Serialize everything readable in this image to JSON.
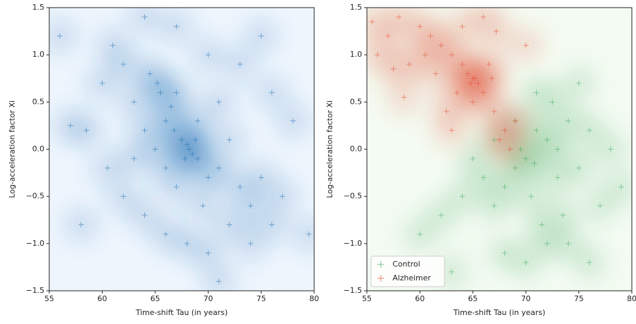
{
  "chart_data": [
    {
      "type": "scatter",
      "background": "#eef5fd",
      "marker": "+",
      "xlabel": "Time-shift Tau (in years)",
      "ylabel": "Log-acceleration factor Xi",
      "xlim": [
        55,
        80
      ],
      "ylim": [
        -1.5,
        1.5
      ],
      "xticks": [
        55,
        60,
        65,
        70,
        75,
        80
      ],
      "yticks": [
        {
          "value": -1.5,
          "label": "−1.5"
        },
        {
          "value": -1,
          "label": "−1.0"
        },
        {
          "value": -0.5,
          "label": "−0.5"
        },
        {
          "value": 0,
          "label": "0.0"
        },
        {
          "value": 0.5,
          "label": "0.5"
        },
        {
          "value": 1,
          "label": "1.0"
        },
        {
          "value": 1.5,
          "label": "1.5"
        }
      ],
      "series": [
        {
          "color": "#2171b5",
          "x": [
            68,
            67.5,
            68.5,
            66,
            65.5,
            64.5,
            66.5,
            69,
            70,
            71,
            72,
            73,
            74,
            75,
            76,
            69.5,
            67,
            66,
            64,
            63,
            62,
            61,
            60,
            58.5,
            57,
            60.5,
            62,
            64,
            66,
            68,
            70,
            72,
            74,
            77,
            78,
            76,
            73,
            70,
            67,
            64,
            71,
            69,
            67,
            65,
            63,
            79.5,
            58,
            56,
            75,
            71,
            68.2,
            67.8,
            68.8,
            66.8,
            65.2
          ],
          "values": [
            0.05,
            0.1,
            -0.05,
            0.3,
            0.6,
            0.8,
            0.45,
            -0.1,
            -0.3,
            -0.2,
            0.1,
            -0.4,
            -0.6,
            -0.3,
            -0.8,
            -0.6,
            -0.4,
            -0.2,
            0.2,
            0.5,
            0.9,
            1.1,
            0.7,
            0.2,
            0.25,
            -0.2,
            -0.5,
            -0.7,
            -0.9,
            -1.0,
            -1.1,
            -0.8,
            -1.0,
            -0.5,
            0.3,
            0.6,
            0.9,
            1.0,
            1.3,
            1.4,
            0.5,
            0.3,
            0.6,
            0.0,
            -0.1,
            -0.9,
            -0.8,
            1.2,
            1.2,
            -1.4,
            0.0,
            -0.1,
            0.1,
            0.2,
            0.7
          ]
        }
      ]
    },
    {
      "type": "scatter",
      "background": "#f4fbf2",
      "marker": "+",
      "legend": "lower left",
      "xlabel": "Time-shift Tau (in years)",
      "ylabel": "Log-acceleration factor Xi",
      "xlim": [
        55,
        80
      ],
      "ylim": [
        -1.5,
        1.5
      ],
      "xticks": [
        55,
        60,
        65,
        70,
        75,
        80
      ],
      "yticks": [
        {
          "value": -1.5,
          "label": "−1.5"
        },
        {
          "value": -1,
          "label": "−1.0"
        },
        {
          "value": -0.5,
          "label": "−0.5"
        },
        {
          "value": 0,
          "label": "0.0"
        },
        {
          "value": 0.5,
          "label": "0.5"
        },
        {
          "value": 1,
          "label": "1.0"
        },
        {
          "value": 1.5,
          "label": "1.5"
        }
      ],
      "series": [
        {
          "name": "Control",
          "color": "#41ab5d",
          "x": [
            71,
            72,
            70,
            69,
            73,
            74,
            72.5,
            70.5,
            68,
            67,
            75,
            76,
            71.5,
            73.5,
            69.5,
            66,
            64,
            62,
            60,
            72,
            70,
            68,
            74,
            77,
            78,
            75,
            71,
            69,
            73,
            67,
            65,
            63,
            76,
            79,
            70.8
          ],
          "values": [
            0.2,
            0.1,
            -0.1,
            -0.2,
            -0.3,
            0.3,
            0.5,
            -0.5,
            -0.4,
            -0.6,
            -0.2,
            0.2,
            -0.8,
            -0.7,
            0.0,
            -0.3,
            -0.5,
            -0.7,
            -0.9,
            -1.0,
            -1.2,
            -1.1,
            -1.0,
            -0.6,
            0.0,
            0.7,
            0.6,
            0.3,
            0.0,
            0.1,
            -0.1,
            -1.3,
            -1.2,
            -0.4,
            -0.15
          ]
        },
        {
          "name": "Alzheimer",
          "color": "#e34a33",
          "x": [
            65,
            64.5,
            65.5,
            66,
            64,
            63,
            62,
            61,
            60,
            58,
            57,
            56,
            63.5,
            66.5,
            67,
            68,
            68.5,
            67.5,
            62.5,
            61.5,
            59,
            64,
            66,
            65,
            60.5,
            57.5,
            69,
            70,
            63,
            66.8,
            65.2,
            64.8,
            58.5,
            55.5,
            67.2
          ],
          "values": [
            0.75,
            0.8,
            0.7,
            0.6,
            0.9,
            1.0,
            1.1,
            1.2,
            1.3,
            1.4,
            1.2,
            1.0,
            0.6,
            0.9,
            0.4,
            0.2,
            0.0,
            0.1,
            0.4,
            0.8,
            0.9,
            1.3,
            1.4,
            0.5,
            1.0,
            0.85,
            0.3,
            1.1,
            0.2,
            0.75,
            0.75,
            0.7,
            0.55,
            1.35,
            1.25
          ]
        }
      ]
    }
  ]
}
